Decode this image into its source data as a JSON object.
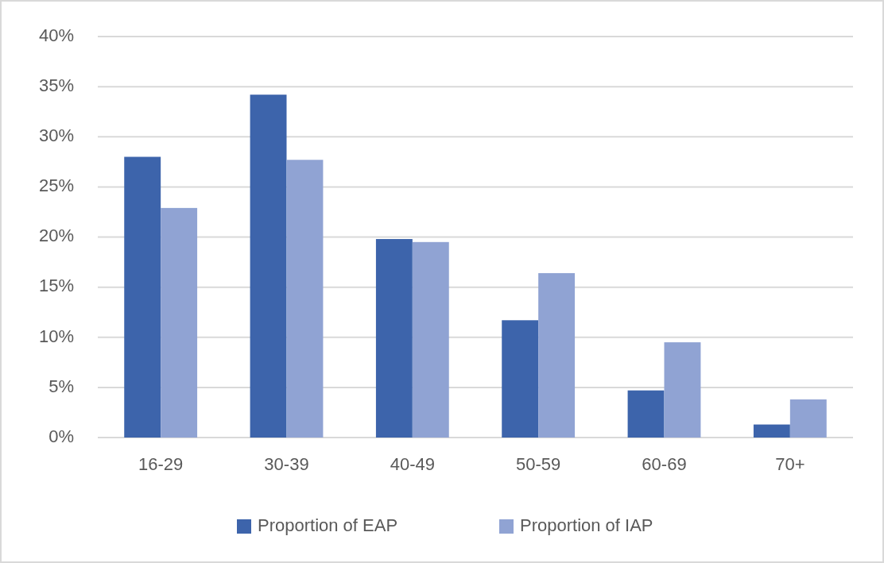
{
  "chart_data": {
    "type": "bar",
    "categories": [
      "16-29",
      "30-39",
      "40-49",
      "50-59",
      "60-69",
      "70+"
    ],
    "series": [
      {
        "name": "Proportion of EAP",
        "color": "#3d64ab",
        "values": [
          28.0,
          34.2,
          19.8,
          11.7,
          4.7,
          1.3
        ]
      },
      {
        "name": "Proportion of IAP",
        "color": "#90a3d3",
        "values": [
          22.9,
          27.7,
          19.5,
          16.4,
          9.5,
          3.8
        ]
      }
    ],
    "ylim": [
      0,
      40
    ],
    "yticks": [
      {
        "value": 0,
        "label": "0%"
      },
      {
        "value": 5,
        "label": "5%"
      },
      {
        "value": 10,
        "label": "10%"
      },
      {
        "value": 15,
        "label": "15%"
      },
      {
        "value": 20,
        "label": "20%"
      },
      {
        "value": 25,
        "label": "25%"
      },
      {
        "value": 30,
        "label": "30%"
      },
      {
        "value": 35,
        "label": "35%"
      },
      {
        "value": 40,
        "label": "40%"
      }
    ],
    "grid": "y",
    "legend": "bottom"
  }
}
